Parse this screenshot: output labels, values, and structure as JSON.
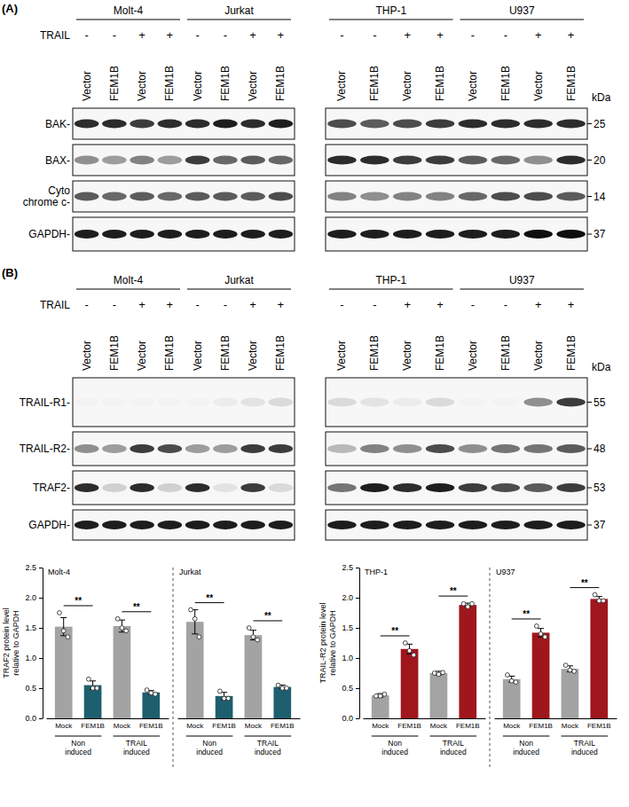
{
  "blots": [
    {
      "letter": "(A)",
      "treatment_label": "TRAIL",
      "kda_label": "kDa",
      "blocks": [
        {
          "cell_lines": [
            "Molt-4",
            "Jurkat"
          ]
        },
        {
          "cell_lines": [
            "THP-1",
            "U937"
          ]
        }
      ],
      "treatment": [
        "-",
        "-",
        "+",
        "+"
      ],
      "lanes": [
        "Vector",
        "FEM1B",
        "Vector",
        "FEM1B"
      ],
      "rows": [
        {
          "label_lines": [
            "BAK-"
          ],
          "kda": 25,
          "bands": [
            [
              0.85,
              0.85,
              0.8,
              0.85,
              0.85,
              0.9,
              0.85,
              0.9
            ],
            [
              0.75,
              0.7,
              0.75,
              0.8,
              0.85,
              0.85,
              0.85,
              0.85
            ]
          ]
        },
        {
          "label_lines": [
            "BAX-"
          ],
          "kda": 20,
          "bands": [
            [
              0.5,
              0.45,
              0.55,
              0.45,
              0.8,
              0.65,
              0.7,
              0.65
            ],
            [
              0.85,
              0.85,
              0.8,
              0.8,
              0.7,
              0.65,
              0.5,
              0.85
            ]
          ]
        },
        {
          "label_lines": [
            "Cyto",
            "chrome c-"
          ],
          "kda": 14,
          "bands": [
            [
              0.7,
              0.65,
              0.7,
              0.65,
              0.7,
              0.7,
              0.7,
              0.75
            ],
            [
              0.55,
              0.5,
              0.55,
              0.55,
              0.65,
              0.75,
              0.75,
              0.7
            ]
          ]
        },
        {
          "label_lines": [
            "GAPDH-"
          ],
          "kda": 37,
          "bands": [
            [
              0.9,
              0.9,
              0.9,
              0.9,
              0.9,
              0.9,
              0.9,
              0.9
            ],
            [
              0.9,
              0.9,
              0.9,
              0.9,
              0.9,
              0.9,
              0.95,
              0.95
            ]
          ]
        }
      ]
    },
    {
      "letter": "(B)",
      "treatment_label": "TRAIL",
      "kda_label": "kDa",
      "blocks": [
        {
          "cell_lines": [
            "Molt-4",
            "Jurkat"
          ]
        },
        {
          "cell_lines": [
            "THP-1",
            "U937"
          ]
        }
      ],
      "treatment": [
        "-",
        "-",
        "+",
        "+"
      ],
      "lanes": [
        "Vector",
        "FEM1B",
        "Vector",
        "FEM1B"
      ],
      "rows": [
        {
          "label_lines": [
            "TRAIL-R1-"
          ],
          "kda": 55,
          "bands": [
            [
              0.05,
              0.05,
              0.05,
              0.05,
              0.05,
              0.1,
              0.15,
              0.2
            ],
            [
              0.2,
              0.15,
              0.1,
              0.2,
              0.05,
              0.05,
              0.5,
              0.8
            ]
          ]
        },
        {
          "label_lines": [
            "TRAIL-R2-"
          ],
          "kda": 48,
          "bands": [
            [
              0.5,
              0.45,
              0.8,
              0.75,
              0.45,
              0.45,
              0.8,
              0.8
            ],
            [
              0.35,
              0.55,
              0.5,
              0.75,
              0.5,
              0.6,
              0.6,
              0.7
            ]
          ]
        },
        {
          "label_lines": [
            "TRAF2-"
          ],
          "kda": 53,
          "bands": [
            [
              0.85,
              0.25,
              0.85,
              0.25,
              0.85,
              0.15,
              0.8,
              0.2
            ],
            [
              0.6,
              0.9,
              0.85,
              0.9,
              0.8,
              0.75,
              0.7,
              0.8
            ]
          ]
        },
        {
          "label_lines": [
            "GAPDH-"
          ],
          "kda": 37,
          "bands": [
            [
              0.9,
              0.9,
              0.9,
              0.9,
              0.9,
              0.9,
              0.9,
              0.9
            ],
            [
              0.9,
              0.9,
              0.9,
              0.9,
              0.9,
              0.9,
              0.9,
              0.9
            ]
          ]
        }
      ]
    }
  ],
  "chart_data": [
    {
      "type": "bar",
      "ylabel": "TRAF2 protein level relative to GAPDH",
      "categories": [
        "Mock",
        "FEM1B",
        "Mock",
        "FEM1B"
      ],
      "groups": [
        "Non induced",
        "TRAIL induced"
      ],
      "colors": [
        "#a3a3a3",
        "#1d5f6e",
        "#a3a3a3",
        "#1d5f6e"
      ],
      "ylim": [
        0,
        2.5
      ],
      "yticks": [
        {
          "value": 0,
          "label": "0.0"
        },
        0.5,
        {
          "value": 1,
          "label": "1.0"
        },
        1.5,
        {
          "value": 2,
          "label": "2.0"
        },
        2.5
      ],
      "panels": [
        {
          "title": "Molt-4",
          "values": [
            1.52,
            0.55,
            1.53,
            0.43
          ],
          "errors": [
            0.15,
            0.07,
            0.1,
            0.03
          ],
          "points": [
            [
              1.75,
              1.45,
              1.35
            ],
            [
              0.65,
              0.5,
              0.5
            ],
            [
              1.65,
              1.5,
              1.45
            ],
            [
              0.47,
              0.42,
              0.4
            ]
          ],
          "significance": [
            "**",
            "**"
          ]
        },
        {
          "title": "Jurkat",
          "values": [
            1.6,
            0.37,
            1.38,
            0.52
          ],
          "errors": [
            0.2,
            0.06,
            0.08,
            0.03
          ],
          "points": [
            [
              1.8,
              1.65,
              1.35
            ],
            [
              0.45,
              0.33,
              0.33
            ],
            [
              1.5,
              1.35,
              1.3
            ],
            [
              0.55,
              0.5,
              0.5
            ]
          ],
          "significance": [
            "**",
            "**"
          ]
        }
      ]
    },
    {
      "type": "bar",
      "ylabel": "TRAIL-R2 protein level relative to GAPDH",
      "categories": [
        "Mock",
        "FEM1B",
        "Mock",
        "FEM1B"
      ],
      "groups": [
        "Non induced",
        "TRAIL induced"
      ],
      "colors": [
        "#a3a3a3",
        "#a0161d",
        "#a3a3a3",
        "#a0161d"
      ],
      "ylim": [
        0,
        2.5
      ],
      "yticks": [
        {
          "value": 0,
          "label": "0.0"
        },
        0.5,
        {
          "value": 1,
          "label": "1.0"
        },
        1.5,
        {
          "value": 2,
          "label": "2.0"
        },
        2.5
      ],
      "panels": [
        {
          "title": "THP-1",
          "values": [
            0.38,
            1.15,
            0.75,
            1.88
          ],
          "errors": [
            0.03,
            0.08,
            0.03,
            0.03
          ],
          "points": [
            [
              0.37,
              0.37,
              0.4
            ],
            [
              1.25,
              1.12,
              1.05
            ],
            [
              0.75,
              0.73,
              0.76
            ],
            [
              1.9,
              1.85,
              1.9
            ]
          ],
          "significance": [
            "**",
            "**"
          ]
        },
        {
          "title": "U937",
          "values": [
            0.65,
            1.42,
            0.82,
            1.98
          ],
          "errors": [
            0.05,
            0.07,
            0.05,
            0.04
          ],
          "points": [
            [
              0.72,
              0.62,
              0.6
            ],
            [
              1.53,
              1.4,
              1.35
            ],
            [
              0.88,
              0.8,
              0.78
            ],
            [
              2.05,
              1.95,
              1.95
            ]
          ],
          "significance": [
            "**",
            "**"
          ]
        }
      ]
    }
  ]
}
